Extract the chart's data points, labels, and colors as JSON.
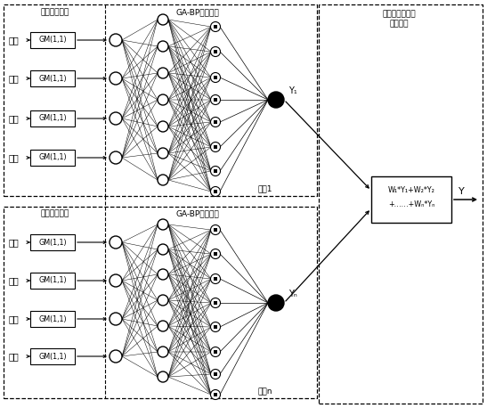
{
  "bg_color": "#ffffff",
  "labels_inputs": [
    "温度",
    "湿度",
    "气流",
    "光照"
  ],
  "gm_label": "GM(1,1)",
  "section_grey_top": "灰色预测模型",
  "section_bp_top": "GA-BP神经网络",
  "section_grey_bot": "灰估预测模型",
  "section_bp_bot": "GA-BP神经网络",
  "right_label_line1": "多点氨气预测估",
  "right_label_line2": "融合模型",
  "node1_label": "节点1",
  "noden_label": "节点n",
  "y1_label": "Y₁",
  "yn_label": "Yₙ",
  "y_out_label": "Y",
  "fusion_line1": "W₁*Y₁+W₂*Y₂",
  "fusion_line2": "+……+Wₙ*Yₙ"
}
